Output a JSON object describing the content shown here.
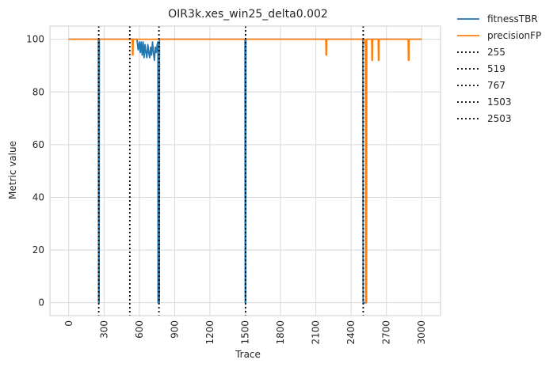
{
  "chart_data": {
    "type": "line",
    "title": "OIR3k.xes_win25_delta0.002",
    "xlabel": "Trace",
    "ylabel": "Metric value",
    "xlim": [
      -160,
      3160
    ],
    "ylim": [
      -4.9,
      105
    ],
    "x_ticks": [
      0,
      300,
      600,
      900,
      1200,
      1500,
      1800,
      2100,
      2400,
      2700,
      3000
    ],
    "y_ticks": [
      0,
      20,
      40,
      60,
      80,
      100
    ],
    "grid": true,
    "legend_position": "outside-right",
    "series": [
      {
        "name": "fitnessTBR",
        "color": "#1f77b4",
        "style": "solid",
        "points": [
          [
            0,
            100
          ],
          [
            252,
            100
          ],
          [
            254,
            0
          ],
          [
            258,
            0
          ],
          [
            260,
            100
          ],
          [
            580,
            100
          ],
          [
            590,
            96
          ],
          [
            600,
            99
          ],
          [
            608,
            95
          ],
          [
            616,
            99
          ],
          [
            624,
            94
          ],
          [
            632,
            99
          ],
          [
            640,
            93
          ],
          [
            648,
            98
          ],
          [
            656,
            95
          ],
          [
            664,
            93
          ],
          [
            672,
            98
          ],
          [
            680,
            95
          ],
          [
            688,
            93
          ],
          [
            696,
            97
          ],
          [
            704,
            94
          ],
          [
            712,
            99
          ],
          [
            720,
            95
          ],
          [
            728,
            92
          ],
          [
            736,
            97
          ],
          [
            744,
            95
          ],
          [
            752,
            98
          ],
          [
            758,
            99
          ],
          [
            759,
            0
          ],
          [
            770,
            0
          ],
          [
            771,
            100
          ],
          [
            1498,
            100
          ],
          [
            1500,
            0
          ],
          [
            1504,
            0
          ],
          [
            1506,
            100
          ],
          [
            2500,
            100
          ],
          [
            2502,
            0
          ],
          [
            2530,
            0
          ],
          [
            2532,
            100
          ],
          [
            3000,
            100
          ]
        ]
      },
      {
        "name": "precisionFP",
        "color": "#ff7f0e",
        "style": "solid",
        "points": [
          [
            0,
            100
          ],
          [
            540,
            100
          ],
          [
            542,
            94
          ],
          [
            546,
            94
          ],
          [
            548,
            100
          ],
          [
            2185,
            100
          ],
          [
            2187,
            94
          ],
          [
            2191,
            94
          ],
          [
            2193,
            100
          ],
          [
            2515,
            100
          ],
          [
            2518,
            98
          ],
          [
            2522,
            98
          ],
          [
            2524,
            0
          ],
          [
            2528,
            0
          ],
          [
            2530,
            100
          ],
          [
            2575,
            100
          ],
          [
            2577,
            92
          ],
          [
            2581,
            92
          ],
          [
            2583,
            100
          ],
          [
            2630,
            100
          ],
          [
            2632,
            92
          ],
          [
            2636,
            92
          ],
          [
            2638,
            100
          ],
          [
            2885,
            100
          ],
          [
            2887,
            92
          ],
          [
            2891,
            92
          ],
          [
            2893,
            100
          ],
          [
            3000,
            100
          ]
        ]
      }
    ],
    "vlines": [
      {
        "name": "255",
        "x": 255
      },
      {
        "name": "519",
        "x": 519
      },
      {
        "name": "767",
        "x": 767
      },
      {
        "name": "1503",
        "x": 1503
      },
      {
        "name": "2503",
        "x": 2503
      }
    ]
  }
}
